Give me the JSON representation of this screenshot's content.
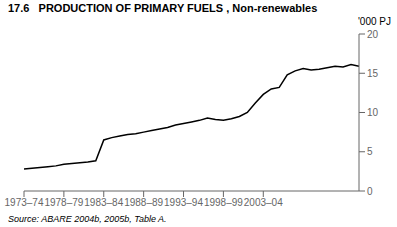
{
  "chart_data": {
    "type": "line",
    "title": "17.6   PRODUCTION OF PRIMARY FUELS , Non-renewables",
    "ylabel": "'000 PJ",
    "annotations": [
      "Source: ABARE 2004b, 2005b, Table A."
    ],
    "categories": [
      "1973–74",
      null,
      null,
      null,
      null,
      "1978–79",
      null,
      null,
      null,
      null,
      "1983–84",
      null,
      null,
      null,
      null,
      "1988–89",
      null,
      null,
      null,
      null,
      "1993–94",
      null,
      null,
      null,
      null,
      "1998–99",
      null,
      null,
      null,
      null,
      "2003–04",
      null,
      null,
      null,
      null,
      null,
      null,
      null,
      null,
      null,
      null,
      null,
      null
    ],
    "values": [
      2.8,
      2.9,
      3.0,
      3.1,
      3.2,
      3.4,
      3.5,
      3.6,
      3.7,
      3.85,
      6.5,
      6.8,
      7.0,
      7.2,
      7.3,
      7.5,
      7.7,
      7.9,
      8.1,
      8.4,
      8.6,
      8.8,
      9.0,
      9.3,
      9.1,
      9.0,
      9.2,
      9.5,
      10.0,
      11.2,
      12.3,
      13.0,
      13.2,
      14.8,
      15.3,
      15.6,
      15.4,
      15.5,
      15.7,
      15.9,
      15.8,
      16.1,
      15.9
    ],
    "color": "#000000",
    "ylim": [
      0,
      20
    ],
    "yticks": [
      0,
      5,
      10,
      15,
      20
    ],
    "grid": false
  }
}
